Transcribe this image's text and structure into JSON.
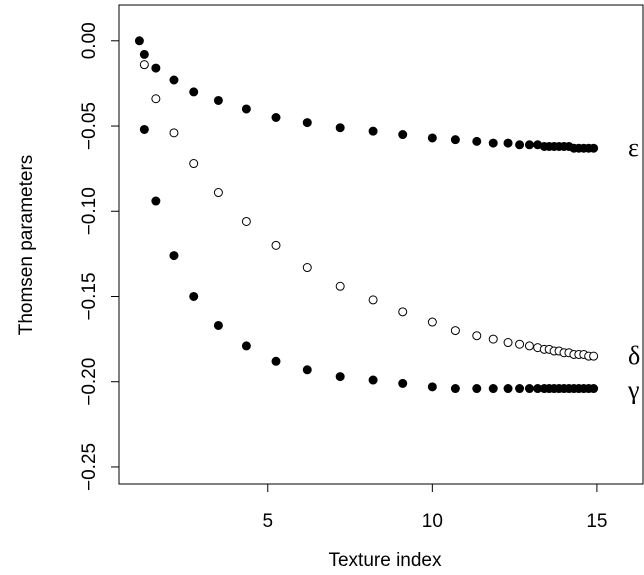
{
  "chart_data": {
    "type": "scatter",
    "x_label": "Texture index",
    "y_label": "Thomsen parameters",
    "x": [
      1.1,
      1.25,
      1.6,
      2.15,
      2.75,
      3.5,
      4.35,
      5.25,
      6.2,
      7.2,
      8.2,
      9.1,
      10.0,
      10.7,
      11.35,
      11.85,
      12.3,
      12.65,
      12.95,
      13.2,
      13.4,
      13.55,
      13.7,
      13.85,
      14.0,
      14.15,
      14.3,
      14.45,
      14.6,
      14.75,
      14.9
    ],
    "series": [
      {
        "name": "ε",
        "color": "#000000",
        "marker": "filled",
        "values": [
          0,
          -0.008,
          -0.016,
          -0.023,
          -0.03,
          -0.035,
          -0.04,
          -0.045,
          -0.048,
          -0.051,
          -0.053,
          -0.055,
          -0.057,
          -0.058,
          -0.059,
          -0.06,
          -0.06,
          -0.061,
          -0.061,
          -0.061,
          -0.062,
          -0.062,
          -0.062,
          -0.062,
          -0.062,
          -0.062,
          -0.063,
          -0.063,
          -0.063,
          -0.063,
          -0.063
        ]
      },
      {
        "name": "δ",
        "color": "#000000",
        "marker": "open",
        "values": [
          null,
          -0.014,
          -0.034,
          -0.054,
          -0.072,
          -0.089,
          -0.106,
          -0.12,
          -0.133,
          -0.144,
          -0.152,
          -0.159,
          -0.165,
          -0.17,
          -0.173,
          -0.175,
          -0.177,
          -0.178,
          -0.179,
          -0.18,
          -0.181,
          -0.181,
          -0.182,
          -0.182,
          -0.183,
          -0.183,
          -0.184,
          -0.184,
          -0.184,
          -0.185,
          -0.185
        ]
      },
      {
        "name": "γ",
        "color": "#000000",
        "marker": "filled",
        "values": [
          null,
          -0.052,
          -0.094,
          -0.126,
          -0.15,
          -0.167,
          -0.179,
          -0.188,
          -0.193,
          -0.197,
          -0.199,
          -0.201,
          -0.203,
          -0.204,
          -0.204,
          -0.204,
          -0.204,
          -0.204,
          -0.204,
          -0.204,
          -0.204,
          -0.204,
          -0.204,
          -0.204,
          -0.204,
          -0.204,
          -0.204,
          -0.204,
          -0.204,
          -0.204,
          -0.204
        ]
      }
    ],
    "xlim": [
      0.48,
      16.4
    ],
    "ylim": [
      -0.26,
      0.021
    ],
    "xticks": [
      5,
      10,
      15
    ],
    "yticks": [
      {
        "value": 0,
        "label": "0.00"
      },
      {
        "value": -0.05,
        "label": "−0.05"
      },
      {
        "value": -0.1,
        "label": "−0.10"
      },
      {
        "value": -0.15,
        "label": "−0.15"
      },
      {
        "value": -0.2,
        "label": "−0.20"
      },
      {
        "value": -0.25,
        "label": "−0.25"
      }
    ]
  }
}
